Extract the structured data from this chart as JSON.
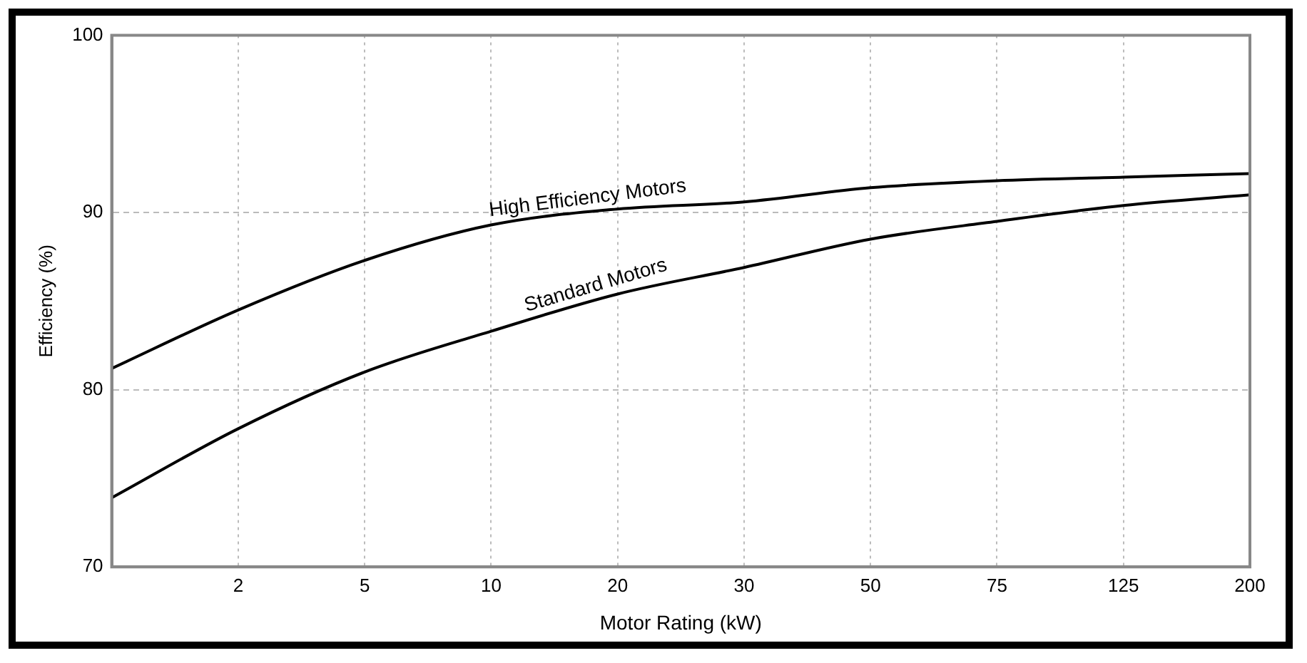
{
  "chart_data": {
    "type": "line",
    "xlabel": "Motor Rating (kW)",
    "ylabel": "Efficiency (%)",
    "categories": [
      null,
      "2",
      "5",
      "10",
      "20",
      "30",
      "50",
      "75",
      "125",
      "200"
    ],
    "series": [
      {
        "name": "High Efficiency Motors",
        "color": "#000000",
        "values": [
          81.2,
          84.5,
          87.3,
          89.3,
          90.2,
          90.6,
          91.4,
          91.8,
          92.0,
          92.2
        ]
      },
      {
        "name": "Standard Motors",
        "color": "#000000",
        "values": [
          73.9,
          77.8,
          81.0,
          83.3,
          85.4,
          86.9,
          88.5,
          89.5,
          90.4,
          91.0
        ]
      }
    ],
    "ylim": [
      70,
      100
    ],
    "yticks": [
      70,
      80,
      90,
      100
    ],
    "grid": true,
    "marker": "none",
    "line_style": "solid"
  }
}
